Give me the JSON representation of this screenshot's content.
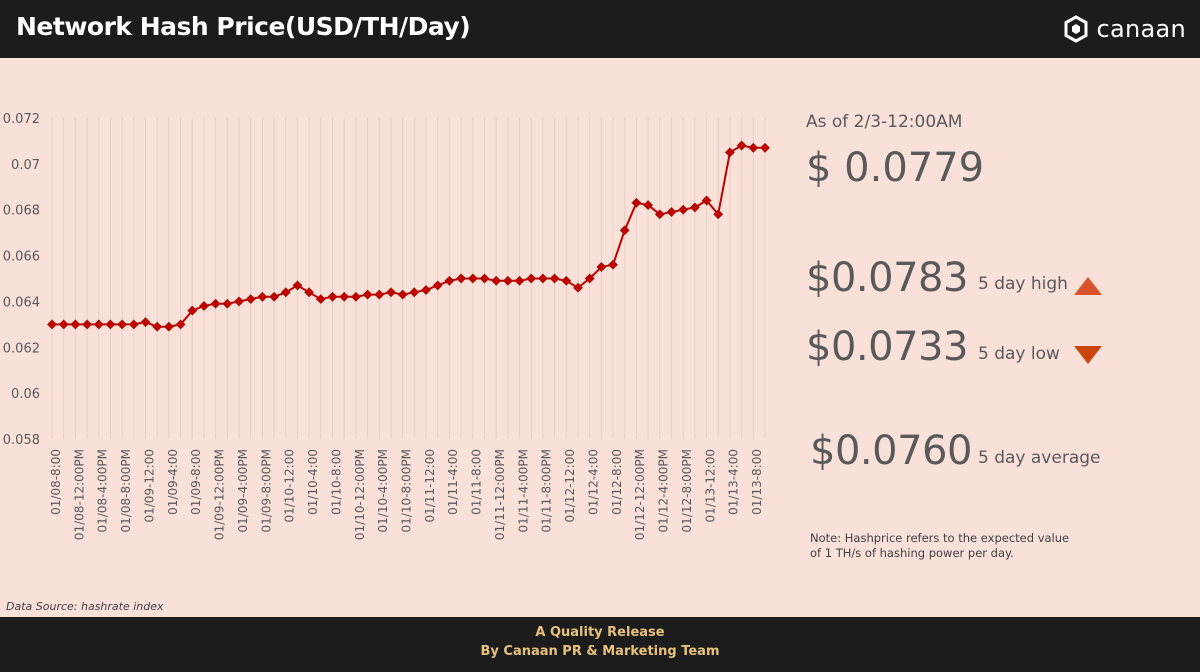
{
  "header": {
    "title": "Network Hash Price(USD/TH/Day)",
    "logo_text": "canaan",
    "logo_icon": "canaan-hexagon-icon"
  },
  "stats": {
    "as_of": "As of 2/3-12:00AM",
    "current": "$ 0.0779",
    "high_value": "$0.0783",
    "high_label": "5 day high",
    "low_value": "$0.0733",
    "low_label": "5 day low",
    "avg_value": "$0.0760",
    "avg_label": "5 day average",
    "up_color": "#d9532a",
    "down_color": "#c9450c"
  },
  "note": "Note: Hashprice refers to the expected value of 1 TH/s of hashing power per day.",
  "source": "Data Source: hashrate index",
  "footer": {
    "line1": "A Quality Release",
    "line2": "By Canaan PR & Marketing Team"
  },
  "colors": {
    "background": "#f9e1d9",
    "bar": "#1c1c1c",
    "line": "#c00000",
    "gold": "#e8c27d"
  },
  "chart_data": {
    "type": "line",
    "title": "",
    "xlabel": "",
    "ylabel": "",
    "ylim": [
      0.058,
      0.072
    ],
    "yticks": [
      0.058,
      0.06,
      0.062,
      0.064,
      0.066,
      0.068,
      0.07,
      0.072
    ],
    "grid": "vertical",
    "tick_labels": [
      "01/08-8:00",
      "01/08-12:00PM",
      "01/08-4:00PM",
      "01/08-8:00PM",
      "01/09-12:00",
      "01/09-4:00",
      "01/09-8:00",
      "01/09-12:00PM",
      "01/09-4:00PM",
      "01/09-8:00PM",
      "01/10-12:00",
      "01/10-4:00",
      "01/10-8:00",
      "01/10-12:00PM",
      "01/10-4:00PM",
      "01/10-8:00PM",
      "01/11-12:00",
      "01/11-4:00",
      "01/11-8:00",
      "01/11-12:00PM",
      "01/11-4:00PM",
      "01/11-8:00PM",
      "01/12-12:00",
      "01/12-4:00",
      "01/12-8:00",
      "01/12-12:00PM",
      "01/12-4:00PM",
      "01/12-8:00PM",
      "01/13-12:00",
      "01/13-4:00",
      "01/13-8:00"
    ],
    "series": [
      {
        "values": [
          0.063,
          0.063,
          0.063,
          0.063,
          0.063,
          0.063,
          0.063,
          0.063,
          0.0631,
          0.0629,
          0.0629,
          0.063,
          0.0636,
          0.0638,
          0.0639,
          0.0639,
          0.064,
          0.0641,
          0.0642,
          0.0642,
          0.0644,
          0.0647,
          0.0644,
          0.0641,
          0.0642,
          0.0642,
          0.0642,
          0.0643,
          0.0643,
          0.0644,
          0.0643,
          0.0644,
          0.0645,
          0.0647,
          0.0649,
          0.065,
          0.065,
          0.065,
          0.0649,
          0.0649,
          0.0649,
          0.065,
          0.065,
          0.065,
          0.0649,
          0.0646,
          0.065,
          0.0655,
          0.0656,
          0.0671,
          0.0683,
          0.0682,
          0.0678,
          0.0679,
          0.068,
          0.0681,
          0.0684,
          0.0678,
          0.0705,
          0.0708,
          0.0707,
          0.0707
        ]
      }
    ]
  }
}
